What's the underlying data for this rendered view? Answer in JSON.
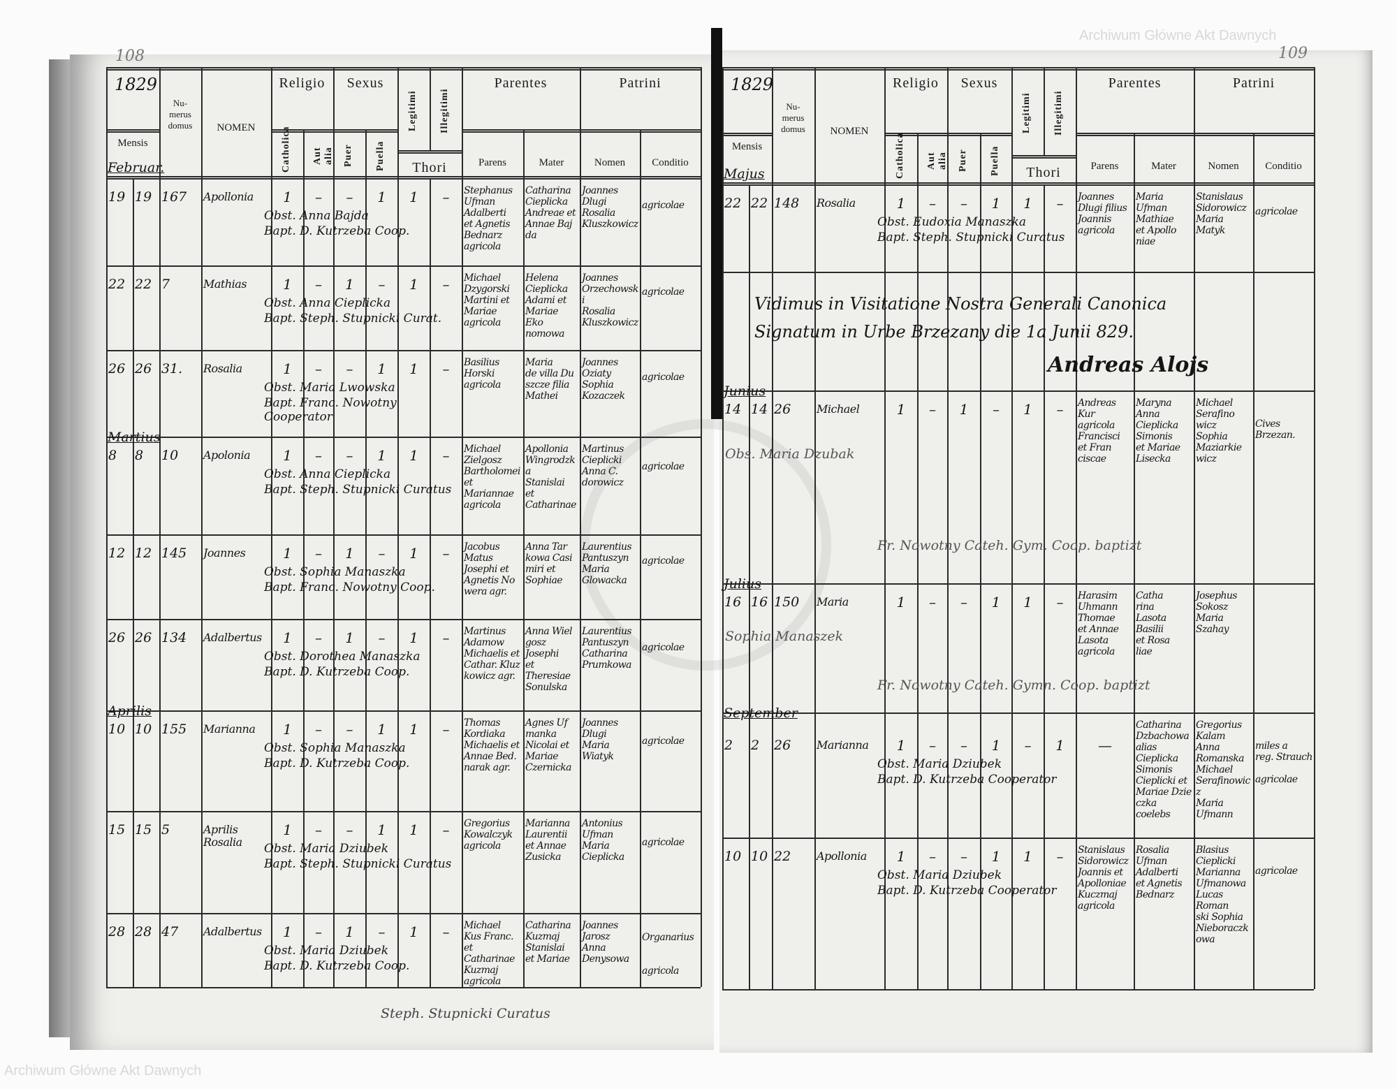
{
  "form_headers": {
    "numerus_domus": "Nu-\nmerus\ndomus",
    "nomen": "NOMEN",
    "mensis": "Mensis",
    "religio": "Religio",
    "catholica": "Catholica",
    "aut_alia": "Aut alia",
    "sexus": "Sexus",
    "puer": "Puer",
    "puella": "Puella",
    "legitimi": "Legitimi",
    "illegitimi": "Illegitimi",
    "thori": "Thori",
    "parentes": "Parentes",
    "parens": "Parens",
    "mater": "Mater",
    "patrini": "Patrini",
    "patrini_nomen": "Nomen",
    "conditio": "Conditio"
  },
  "watermark": "Archiwum Główne Akt Dawnych",
  "seal_text": "ARCHIWUM GŁÓWNE AKT DAWNYCH",
  "pages": [
    {
      "page_number": "108",
      "year": "1829",
      "months": [
        {
          "label": "Februar.",
          "row": -1
        },
        {
          "label": "Martius",
          "row": 3
        },
        {
          "label": "Aprilis",
          "row": 6
        }
      ],
      "footer": "Steph. Stupnicki Curatus",
      "rows": [
        {
          "day_birth": "19",
          "day_baptism": "19",
          "house": "167",
          "name": "Apollonia",
          "catholica": "1",
          "aut_alia": "–",
          "puer": "–",
          "puella": "1",
          "legitimi": "1",
          "illegitimi": "–",
          "parens": "Stephanus\nUfman\nAdalberti\net Agnetis\nBednarz\nagricola",
          "mater": "Catharina\nCieplicka\nAndreae et\nAnnae Baj\nda",
          "patrini_nomen": "Joannes\nDlugi\nRosalia\nKluszkowicz",
          "conditio": "agricolae",
          "obstetrix": "Obst. Anna Bajda",
          "baptizans": "Bapt. D. Kutrzeba Coop."
        },
        {
          "day_birth": "22",
          "day_baptism": "22",
          "house": "7",
          "name": "Mathias",
          "catholica": "1",
          "aut_alia": "–",
          "puer": "1",
          "puella": "–",
          "legitimi": "1",
          "illegitimi": "–",
          "parens": "Michael\nDzygorski\nMartini et\nMariae\nagricola",
          "mater": "Helena\nCieplicka\nAdami et\nMariae Eko\nnomowa",
          "patrini_nomen": "Joannes\nOrzechowski\nRosalia\nKluszkowicz",
          "conditio": "agricolae",
          "obstetrix": "Obst. Anna Cieplicka",
          "baptizans": "Bapt. Steph. Stupnicki Curat."
        },
        {
          "day_birth": "26",
          "day_baptism": "26",
          "house": "31.",
          "name": "Rosalia",
          "catholica": "1",
          "aut_alia": "–",
          "puer": "–",
          "puella": "1",
          "legitimi": "1",
          "illegitimi": "–",
          "parens": "Basilius\nHorski\nagricola",
          "mater": "Maria\nde villa Du\nszcze filia\nMathei",
          "patrini_nomen": "Joannes\nOziaty\nSophia\nKozaczek",
          "conditio": "agricolae",
          "obstetrix": "Obst. Maria Lwowska",
          "baptizans": "Bapt. Franc. Nowotny Cooperator"
        },
        {
          "day_birth": "8",
          "day_baptism": "8",
          "house": "10",
          "name": "Apolonia",
          "catholica": "1",
          "aut_alia": "–",
          "puer": "–",
          "puella": "1",
          "legitimi": "1",
          "illegitimi": "–",
          "parens": "Michael\nZielgosz\nBartholomei\net Mariannae\nagricola",
          "mater": "Apollonia\nWingrodzka\nStanislai\net Catharinae",
          "patrini_nomen": "Martinus\nCieplicki\nAnna C.\ndorowicz",
          "conditio": "agricolae",
          "obstetrix": "Obst. Anna Cieplicka",
          "baptizans": "Bapt. Steph. Stupnicki Curatus"
        },
        {
          "day_birth": "12",
          "day_baptism": "12",
          "house": "145",
          "name": "Joannes",
          "catholica": "1",
          "aut_alia": "–",
          "puer": "1",
          "puella": "–",
          "legitimi": "1",
          "illegitimi": "–",
          "parens": "Jacobus\nMatus\nJosephi et\nAgnetis No\nwera agr.",
          "mater": "Anna Tar\nkowa Casi\nmiri et\nSophiae",
          "patrini_nomen": "Laurentius\nPantuszyn\nMaria\nGlowacka",
          "conditio": "agricolae",
          "obstetrix": "Obst. Sophia Manaszka",
          "baptizans": "Bapt. Franc. Nowotny Coop."
        },
        {
          "day_birth": "26",
          "day_baptism": "26",
          "house": "134",
          "name": "Adalbertus",
          "catholica": "1",
          "aut_alia": "–",
          "puer": "1",
          "puella": "–",
          "legitimi": "1",
          "illegitimi": "–",
          "parens": "Martinus\nAdamow\nMichaelis et\nCathar. Kluz\nkowicz agr.",
          "mater": "Anna Wiel\ngosz Josephi\net Theresiae\nSonulska",
          "patrini_nomen": "Laurentius\nPantuszyn\nCatharina\nPrumkowa",
          "conditio": "agricolae",
          "obstetrix": "Obst. Dorothea Manaszka",
          "baptizans": "Bapt. D. Kutrzeba Coop."
        },
        {
          "day_birth": "10",
          "day_baptism": "10",
          "house": "155",
          "name": "Marianna",
          "catholica": "1",
          "aut_alia": "–",
          "puer": "–",
          "puella": "1",
          "legitimi": "1",
          "illegitimi": "–",
          "parens": "Thomas\nKordiaka\nMichaelis et\nAnnae Bed.\nnarak agr.",
          "mater": "Agnes Uf\nmanka\nNicolai et\nMariae\nCzernicka",
          "patrini_nomen": "Joannes\nDlugi\nMaria\nWiatyk",
          "conditio": "agricolae",
          "obstetrix": "Obst. Sophia Manaszka",
          "baptizans": "Bapt. D. Kutrzeba Coop."
        },
        {
          "day_birth": "15",
          "day_baptism": "15",
          "house": "5",
          "name": "Aprilis\nRosalia",
          "catholica": "1",
          "aut_alia": "–",
          "puer": "–",
          "puella": "1",
          "legitimi": "1",
          "illegitimi": "–",
          "parens": "Gregorius\nKowalczyk\nagricola",
          "mater": "Marianna\nLaurentii\net Annae\nZusicka",
          "patrini_nomen": "Antonius\nUfman\nMaria\nCieplicka",
          "conditio": "agricolae",
          "obstetrix": "Obst. Maria Dziubek",
          "baptizans": "Bapt. Steph. Stupnicki Curatus"
        },
        {
          "day_birth": "28",
          "day_baptism": "28",
          "house": "47",
          "name": "Adalbertus",
          "catholica": "1",
          "aut_alia": "–",
          "puer": "1",
          "puella": "–",
          "legitimi": "1",
          "illegitimi": "–",
          "parens": "Michael\nKus Franc.\net Catharinae\nKuzmaj\nagricola",
          "mater": "Catharina\nKuzmaj\nStanislai\net Mariae",
          "patrini_nomen": "Joannes\nJarosz\nAnna\nDenysowa",
          "conditio": "Organarius\n\n\nagricola",
          "obstetrix": "Obst. Maria Dziubek",
          "baptizans": "Bapt. D. Kutrzeba Coop."
        }
      ]
    },
    {
      "page_number": "109",
      "year": "1829",
      "months": [
        {
          "label": "Majus",
          "row": -1
        },
        {
          "label": "Junius",
          "row": 2
        },
        {
          "label": "Julius",
          "row": 3
        },
        {
          "label": "September",
          "row": 4
        }
      ],
      "visitation": {
        "line1": "Vidimus in Visitatione Nostra Generali Canonica",
        "line2": "Signatum in Urbe Brzezany die 1a Junii 829.",
        "signature": "Andreas Alojs"
      },
      "rows": [
        {
          "day_birth": "22",
          "day_baptism": "22",
          "house": "148",
          "name": "Rosalia",
          "catholica": "1",
          "aut_alia": "–",
          "puer": "–",
          "puella": "1",
          "legitimi": "1",
          "illegitimi": "–",
          "parens": "Joannes\nDlugi filius\nJoannis\nagricola",
          "mater": "Maria\nUfman\nMathiae\net Apollo\nniae",
          "patrini_nomen": "Stanislaus\nSidorowicz\nMaria\nMatyk",
          "conditio": "agricolae",
          "obstetrix": "Obst. Eudoxia Manaszka",
          "baptizans": "Bapt. Steph. Stupnicki Curatus"
        },
        {},
        {
          "day_birth": "14",
          "day_baptism": "14",
          "house": "26",
          "name": "Michael",
          "catholica": "1",
          "aut_alia": "–",
          "puer": "1",
          "puella": "–",
          "legitimi": "1",
          "illegitimi": "–",
          "parens": "Andreas\nKur\nagricola\nFrancisci\net Fran\nciscae",
          "mater": "Maryna\nAnna\nCieplicka\nSimonis\net Mariae\nLisecka",
          "patrini_nomen": "Michael\nSerafino\nwicz\nSophia\nMaziarkie\nwicz",
          "conditio": "Cives\nBrzezan.",
          "obstetrix": "Obs. Maria Dzubak",
          "baptizans": "Fr. Nowotny Cateh. Gym. Coop. baptizt"
        },
        {
          "day_birth": "16",
          "day_baptism": "16",
          "house": "150",
          "name": "Maria",
          "catholica": "1",
          "aut_alia": "–",
          "puer": "–",
          "puella": "1",
          "legitimi": "1",
          "illegitimi": "–",
          "parens": "Harasim\nUhmann\nThomae\net Annae\nLasota\nagricola",
          "mater": "Catha\nrina\nLasota\nBasilii\net Rosa\nliae",
          "patrini_nomen": "Josephus\nSokosz\nMaria\nSzahay",
          "conditio": "",
          "obstetrix": "Sophia Manaszek",
          "baptizans": "Fr. Nowotny Cateh. Gymn. Coop. baptizt"
        },
        {
          "day_birth": "2",
          "day_baptism": "2",
          "house": "26",
          "name": "Marianna",
          "catholica": "1",
          "aut_alia": "–",
          "puer": "–",
          "puella": "1",
          "legitimi": "–",
          "illegitimi": "1",
          "parens": "—",
          "mater": "Catharina\nDzbachowa\nalias Cieplicka\nSimonis\nCieplicki et\nMariae Dzie\nczka\ncoelebs",
          "patrini_nomen": "Gregorius\nKalam\nAnna\nRomanska\nMichael\nSerafinowicz\nMaria\nUfmann",
          "conditio": "miles a\nreg. Strauch\n\nagricolae",
          "obstetrix": "Obst. Maria Dziubek",
          "baptizans": "Bapt. D. Kutrzeba Cooperator"
        },
        {
          "day_birth": "10",
          "day_baptism": "10",
          "house": "22",
          "name": "Apollonia",
          "catholica": "1",
          "aut_alia": "–",
          "puer": "–",
          "puella": "1",
          "legitimi": "1",
          "illegitimi": "–",
          "parens": "Stanislaus\nSidorowicz\nJoannis et\nApolloniae\nKuczmaj\nagricola",
          "mater": "Rosalia\nUfman\nAdalberti\net Agnetis\nBednarz",
          "patrini_nomen": "Blasius\nCieplicki\nMarianna\nUfmanowa\nLucas Roman\nski Sophia\nNieboraczkowa",
          "conditio": "agricolae",
          "obstetrix": "Obst. Maria Dziubek",
          "baptizans": "Bapt. D. Kutrzeba Cooperator"
        }
      ]
    }
  ]
}
